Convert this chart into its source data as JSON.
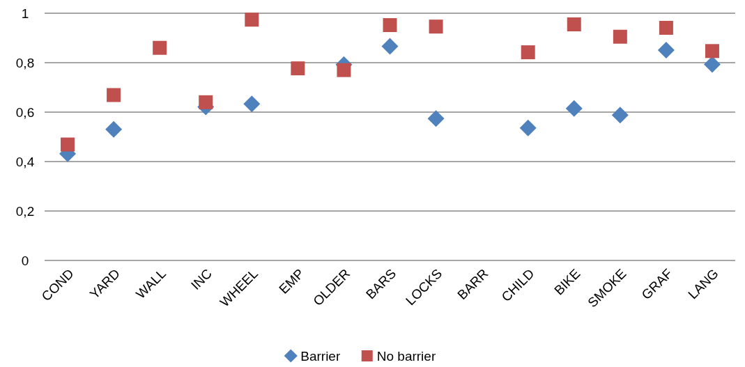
{
  "chart_data": {
    "type": "scatter",
    "categories": [
      "COND",
      "YARD",
      "WALL",
      "INC",
      "WHEEL",
      "EMP",
      "OLDER",
      "BARS",
      "LOCKS",
      "BARR",
      "CHILD",
      "BIKE",
      "SMOKE",
      "GRAF",
      "LANG"
    ],
    "series": [
      {
        "name": "Barrier",
        "color": "#4f81bd",
        "marker": "diamond",
        "values": [
          0.432,
          0.53,
          null,
          0.621,
          0.633,
          null,
          0.792,
          0.866,
          0.574,
          null,
          0.536,
          0.615,
          0.588,
          0.851,
          0.793
        ]
      },
      {
        "name": "No barrier",
        "color": "#c0504d",
        "marker": "square",
        "values": [
          0.469,
          0.669,
          0.86,
          0.64,
          0.974,
          0.777,
          0.77,
          0.952,
          0.946,
          null,
          0.842,
          0.955,
          0.905,
          0.941,
          0.847
        ]
      }
    ],
    "ylim": [
      0,
      1
    ],
    "yticks": [
      {
        "value": 0,
        "label": "0"
      },
      {
        "value": 0.2,
        "label": "0,2"
      },
      {
        "value": 0.4,
        "label": "0,4"
      },
      {
        "value": 0.6,
        "label": "0,6"
      },
      {
        "value": 0.8,
        "label": "0,8"
      },
      {
        "value": 1,
        "label": "1"
      }
    ],
    "grid": "y",
    "legend": "bottom"
  }
}
